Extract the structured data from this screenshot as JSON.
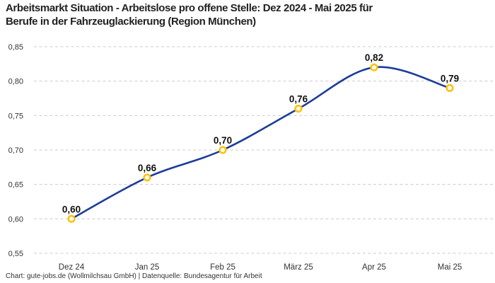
{
  "header": {
    "title_line1": "Arbeitsmarkt Situation - Arbeitslose pro offene Stelle: Dez 2024 - Mai 2025 für",
    "title_line2": "Berufe in der Fahrzeuglackierung (Region München)"
  },
  "chart_data": {
    "type": "line",
    "title": "Arbeitsmarkt Situation - Arbeitslose pro offene Stelle: Dez 2024 - Mai 2025 für Berufe in der Fahrzeuglackierung (Region München)",
    "categories": [
      "Dez 24",
      "Jan 25",
      "Feb 25",
      "März 25",
      "Apr 25",
      "Mai 25"
    ],
    "values": [
      0.6,
      0.66,
      0.7,
      0.76,
      0.82,
      0.79
    ],
    "value_labels": [
      "0,60",
      "0,66",
      "0,70",
      "0,76",
      "0,82",
      "0,79"
    ],
    "y_ticks": [
      "0,85",
      "0,80",
      "0,75",
      "0,70",
      "0,65",
      "0,60",
      "0,55"
    ],
    "y_tick_values": [
      0.85,
      0.8,
      0.75,
      0.7,
      0.65,
      0.6,
      0.55
    ],
    "ylim": [
      0.55,
      0.85
    ],
    "xlabel": "",
    "ylabel": "",
    "grid": "horizontal-dashed",
    "legend": "none",
    "line_color": "#1c3d99",
    "marker_ring_color": "#ffc20e",
    "marker_fill_color": "#ffffff",
    "grid_color": "#cccccc",
    "axis_text_color": "#333333",
    "value_label_color": "#111111"
  },
  "footer": {
    "text": "Chart: gute-jobs.de (Wollmilchsau GmbH) | Datenquelle: Bundesagentur für Arbeit"
  }
}
